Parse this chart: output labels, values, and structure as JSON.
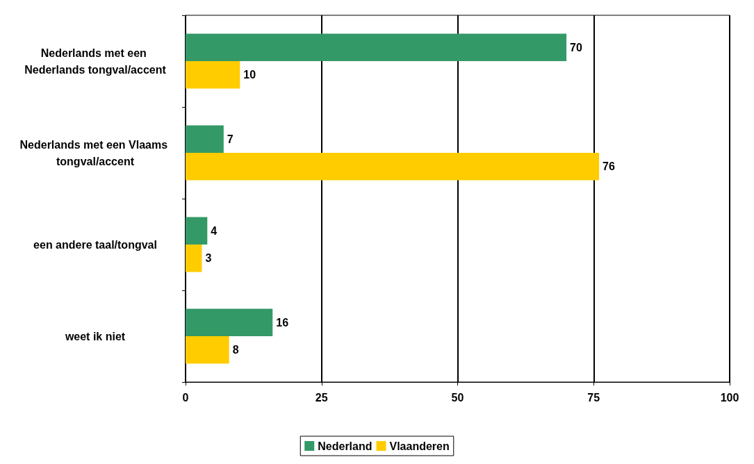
{
  "chart_data": {
    "type": "bar",
    "orientation": "horizontal",
    "categories": [
      "Nederlands met een Nederlands tongval/accent",
      "Nederlands met een Vlaams tongval/accent",
      "een andere taal/tongval",
      "weet ik niet"
    ],
    "series": [
      {
        "name": "Nederland",
        "color": "#339966",
        "values": [
          70,
          7,
          4,
          16
        ]
      },
      {
        "name": "Vlaanderen",
        "color": "#ffcc00",
        "values": [
          10,
          76,
          3,
          8
        ]
      }
    ],
    "xlim": [
      0,
      100
    ],
    "xticks": [
      0,
      25,
      50,
      75,
      100
    ],
    "grid": "x",
    "legend": "bottom",
    "data_labels": true
  }
}
